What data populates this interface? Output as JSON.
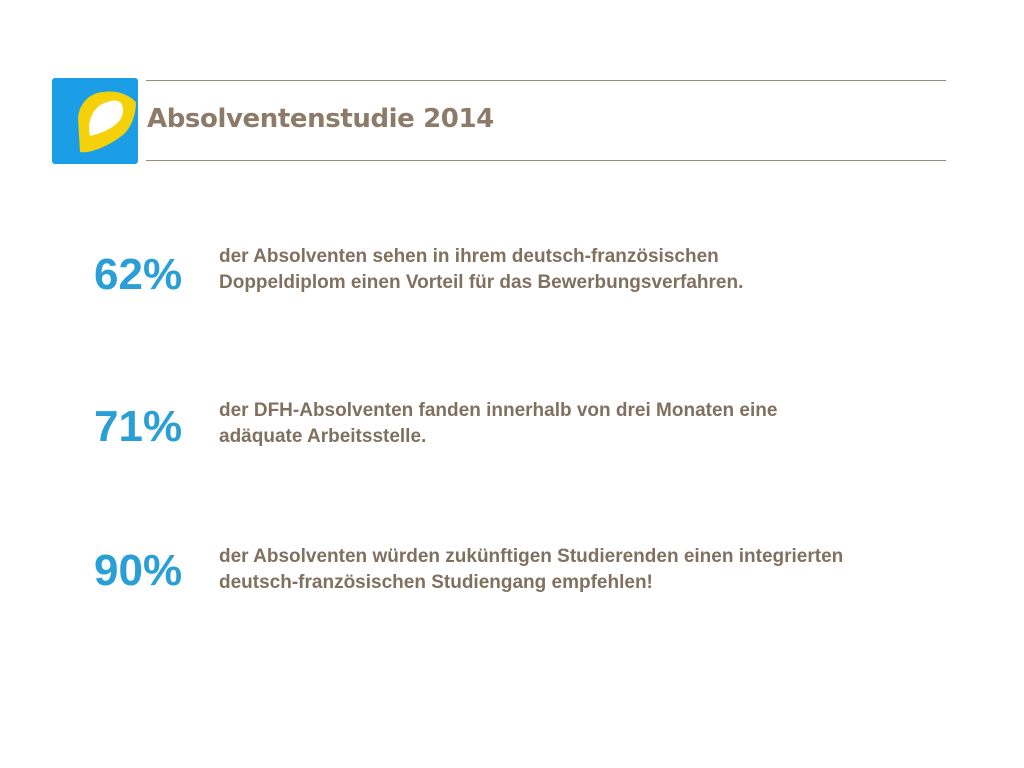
{
  "header": {
    "title": "Absolventenstudie 2014",
    "logo_colors": {
      "blue": "#1c9ee6",
      "yellow": "#f5d10a",
      "white": "#ffffff"
    }
  },
  "stats": [
    {
      "value": "62%",
      "lines": [
        "der Absolventen sehen in ihrem deutsch-französischen",
        "Doppeldiplom einen Vorteil für das Bewerbungsverfahren."
      ]
    },
    {
      "value": "71%",
      "lines": [
        "der DFH-Absolventen fanden innerhalb von drei Monaten eine",
        "adäquate Arbeitsstelle."
      ]
    },
    {
      "value": "90%",
      "lines": [
        "der Absolventen würden zukünftigen Studierenden einen integrierten",
        "deutsch-französischen Studiengang empfehlen!"
      ]
    }
  ],
  "colors": {
    "accent_blue": "#2a9fd6",
    "text_brown": "#80705f",
    "title_brown": "#8c7b68",
    "rule": "#9b8a7a"
  }
}
